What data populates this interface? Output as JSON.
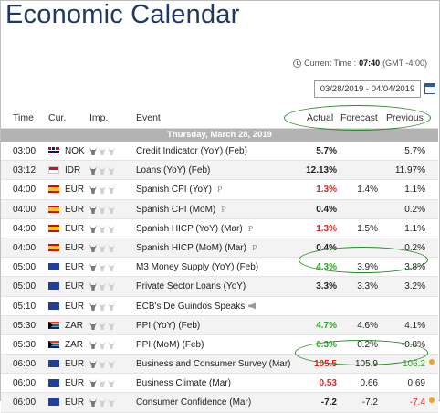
{
  "page": {
    "title": "Economic Calendar"
  },
  "current_time": {
    "label": "Current Time :",
    "time": "07:40",
    "zone": "(GMT -4:00)"
  },
  "date_range": {
    "value": "03/28/2019 - 04/04/2019"
  },
  "columns": {
    "time": "Time",
    "cur": "Cur.",
    "imp": "Imp.",
    "event": "Event",
    "actual": "Actual",
    "forecast": "Forecast",
    "previous": "Previous"
  },
  "day_header": "Thursday, March 28, 2019",
  "rows": [
    {
      "time": "03:00",
      "flag": "nok",
      "cur": "NOK",
      "imp": 1,
      "event": "Credit Indicator (YoY) (Feb)",
      "actual": "5.7%",
      "actual_color": "black",
      "forecast": "",
      "previous": "5.7%",
      "mark": "",
      "speech": false,
      "dot": false
    },
    {
      "time": "03:12",
      "flag": "idr",
      "cur": "IDR",
      "imp": 1,
      "event": "Loans (YoY) (Feb)",
      "actual": "12.13%",
      "actual_color": "black",
      "forecast": "",
      "previous": "11.97%",
      "mark": "",
      "speech": false,
      "dot": false
    },
    {
      "time": "04:00",
      "flag": "esp",
      "cur": "EUR",
      "imp": 1,
      "event": "Spanish CPI (YoY)",
      "actual": "1.3%",
      "actual_color": "red",
      "forecast": "1.4%",
      "previous": "1.1%",
      "mark": "P",
      "speech": false,
      "dot": false
    },
    {
      "time": "04:00",
      "flag": "esp",
      "cur": "EUR",
      "imp": 1,
      "event": "Spanish CPI (MoM)",
      "actual": "0.4%",
      "actual_color": "black",
      "forecast": "",
      "previous": "0.2%",
      "mark": "P",
      "speech": false,
      "dot": false
    },
    {
      "time": "04:00",
      "flag": "esp",
      "cur": "EUR",
      "imp": 1,
      "event": "Spanish HICP (YoY) (Mar)",
      "actual": "1.3%",
      "actual_color": "red",
      "forecast": "1.5%",
      "previous": "1.1%",
      "mark": "P",
      "speech": false,
      "dot": false
    },
    {
      "time": "04:00",
      "flag": "esp",
      "cur": "EUR",
      "imp": 1,
      "event": "Spanish HICP (MoM) (Mar)",
      "actual": "0.4%",
      "actual_color": "black",
      "forecast": "",
      "previous": "0.2%",
      "mark": "P",
      "speech": false,
      "dot": false
    },
    {
      "time": "05:00",
      "flag": "eur",
      "cur": "EUR",
      "imp": 1,
      "event": "M3 Money Supply (YoY) (Feb)",
      "actual": "4.3%",
      "actual_color": "green",
      "forecast": "3.9%",
      "previous": "3.8%",
      "mark": "",
      "speech": false,
      "dot": false
    },
    {
      "time": "05:00",
      "flag": "eur",
      "cur": "EUR",
      "imp": 1,
      "event": "Private Sector Loans (YoY)",
      "actual": "3.3%",
      "actual_color": "black",
      "forecast": "3.3%",
      "previous": "3.2%",
      "mark": "",
      "speech": false,
      "dot": false
    },
    {
      "time": "05:10",
      "flag": "eur",
      "cur": "EUR",
      "imp": 1,
      "event": "ECB's De Guindos Speaks",
      "actual": "",
      "actual_color": "black",
      "forecast": "",
      "previous": "",
      "mark": "",
      "speech": true,
      "dot": false
    },
    {
      "time": "05:30",
      "flag": "zar",
      "cur": "ZAR",
      "imp": 1,
      "event": "PPI (YoY) (Feb)",
      "actual": "4.7%",
      "actual_color": "green",
      "forecast": "4.6%",
      "previous": "4.1%",
      "mark": "",
      "speech": false,
      "dot": false
    },
    {
      "time": "05:30",
      "flag": "zar",
      "cur": "ZAR",
      "imp": 1,
      "event": "PPI (MoM) (Feb)",
      "actual": "0.3%",
      "actual_color": "green",
      "forecast": "0.2%",
      "previous": "-0.8%",
      "mark": "",
      "speech": false,
      "dot": false
    },
    {
      "time": "06:00",
      "flag": "eur",
      "cur": "EUR",
      "imp": 1,
      "event": "Business and Consumer Survey (Mar)",
      "actual": "105.5",
      "actual_color": "red",
      "forecast": "105.9",
      "previous": "106.2",
      "previous_color": "green",
      "mark": "",
      "speech": false,
      "dot": true
    },
    {
      "time": "06:00",
      "flag": "eur",
      "cur": "EUR",
      "imp": 1,
      "event": "Business Climate (Mar)",
      "actual": "0.53",
      "actual_color": "red",
      "forecast": "0.66",
      "previous": "0.69",
      "mark": "",
      "speech": false,
      "dot": false
    },
    {
      "time": "06:00",
      "flag": "eur",
      "cur": "EUR",
      "imp": 1,
      "event": "Consumer Confidence (Mar)",
      "actual": "-7.2",
      "actual_color": "black",
      "forecast": "-7.2",
      "previous": "-7.4",
      "previous_color": "red",
      "mark": "",
      "speech": false,
      "dot": true
    }
  ]
}
